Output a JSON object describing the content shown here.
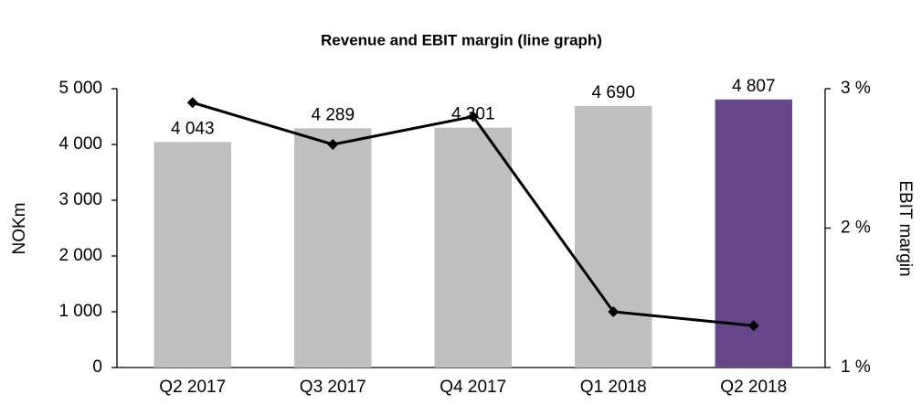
{
  "chart_data": {
    "type": "combo",
    "title": "Revenue and EBIT margin (line graph)",
    "y_label": "NOKm",
    "y2_label": "EBIT margin",
    "categories": [
      "Q2 2017",
      "Q3 2017",
      "Q4 2017",
      "Q1 2018",
      "Q2 2018"
    ],
    "series": [
      {
        "type": "bar",
        "colors": [
          "#bfbfbf",
          "#bfbfbf",
          "#bfbfbf",
          "#bfbfbf",
          "#65478a"
        ],
        "values": [
          4043,
          4289,
          4301,
          4690,
          4807
        ],
        "value_labels": [
          "4 043",
          "4 289",
          "4 301",
          "4 690",
          "4 807"
        ]
      },
      {
        "type": "line",
        "axis": "y2",
        "color": "#000000",
        "values": [
          2.9,
          2.6,
          2.8,
          1.4,
          1.3
        ]
      }
    ],
    "ylim": [
      0,
      5000
    ],
    "yticks": [
      0,
      {
        "value": 1000,
        "label": "1 000"
      },
      {
        "value": 2000,
        "label": "2 000"
      },
      {
        "value": 3000,
        "label": "3 000"
      },
      {
        "value": 4000,
        "label": "4 000"
      },
      {
        "value": 5000,
        "label": "5 000"
      }
    ],
    "y2lim": [
      1,
      3
    ],
    "y2ticks": [
      {
        "value": 1,
        "label": "1 %"
      },
      {
        "value": 2,
        "label": "2 %"
      },
      {
        "value": 3,
        "label": "3 %"
      }
    ],
    "grid": false
  }
}
